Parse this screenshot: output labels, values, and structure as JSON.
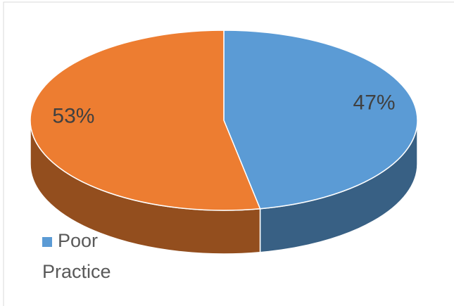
{
  "chart_data": {
    "type": "pie3d",
    "categories": [
      "Poor Practice",
      null
    ],
    "values": [
      47,
      53
    ],
    "value_labels": [
      "47%",
      "53%"
    ],
    "colors": [
      "#5b9bd5",
      "#ed7d31"
    ],
    "legend": "bottom-left"
  }
}
